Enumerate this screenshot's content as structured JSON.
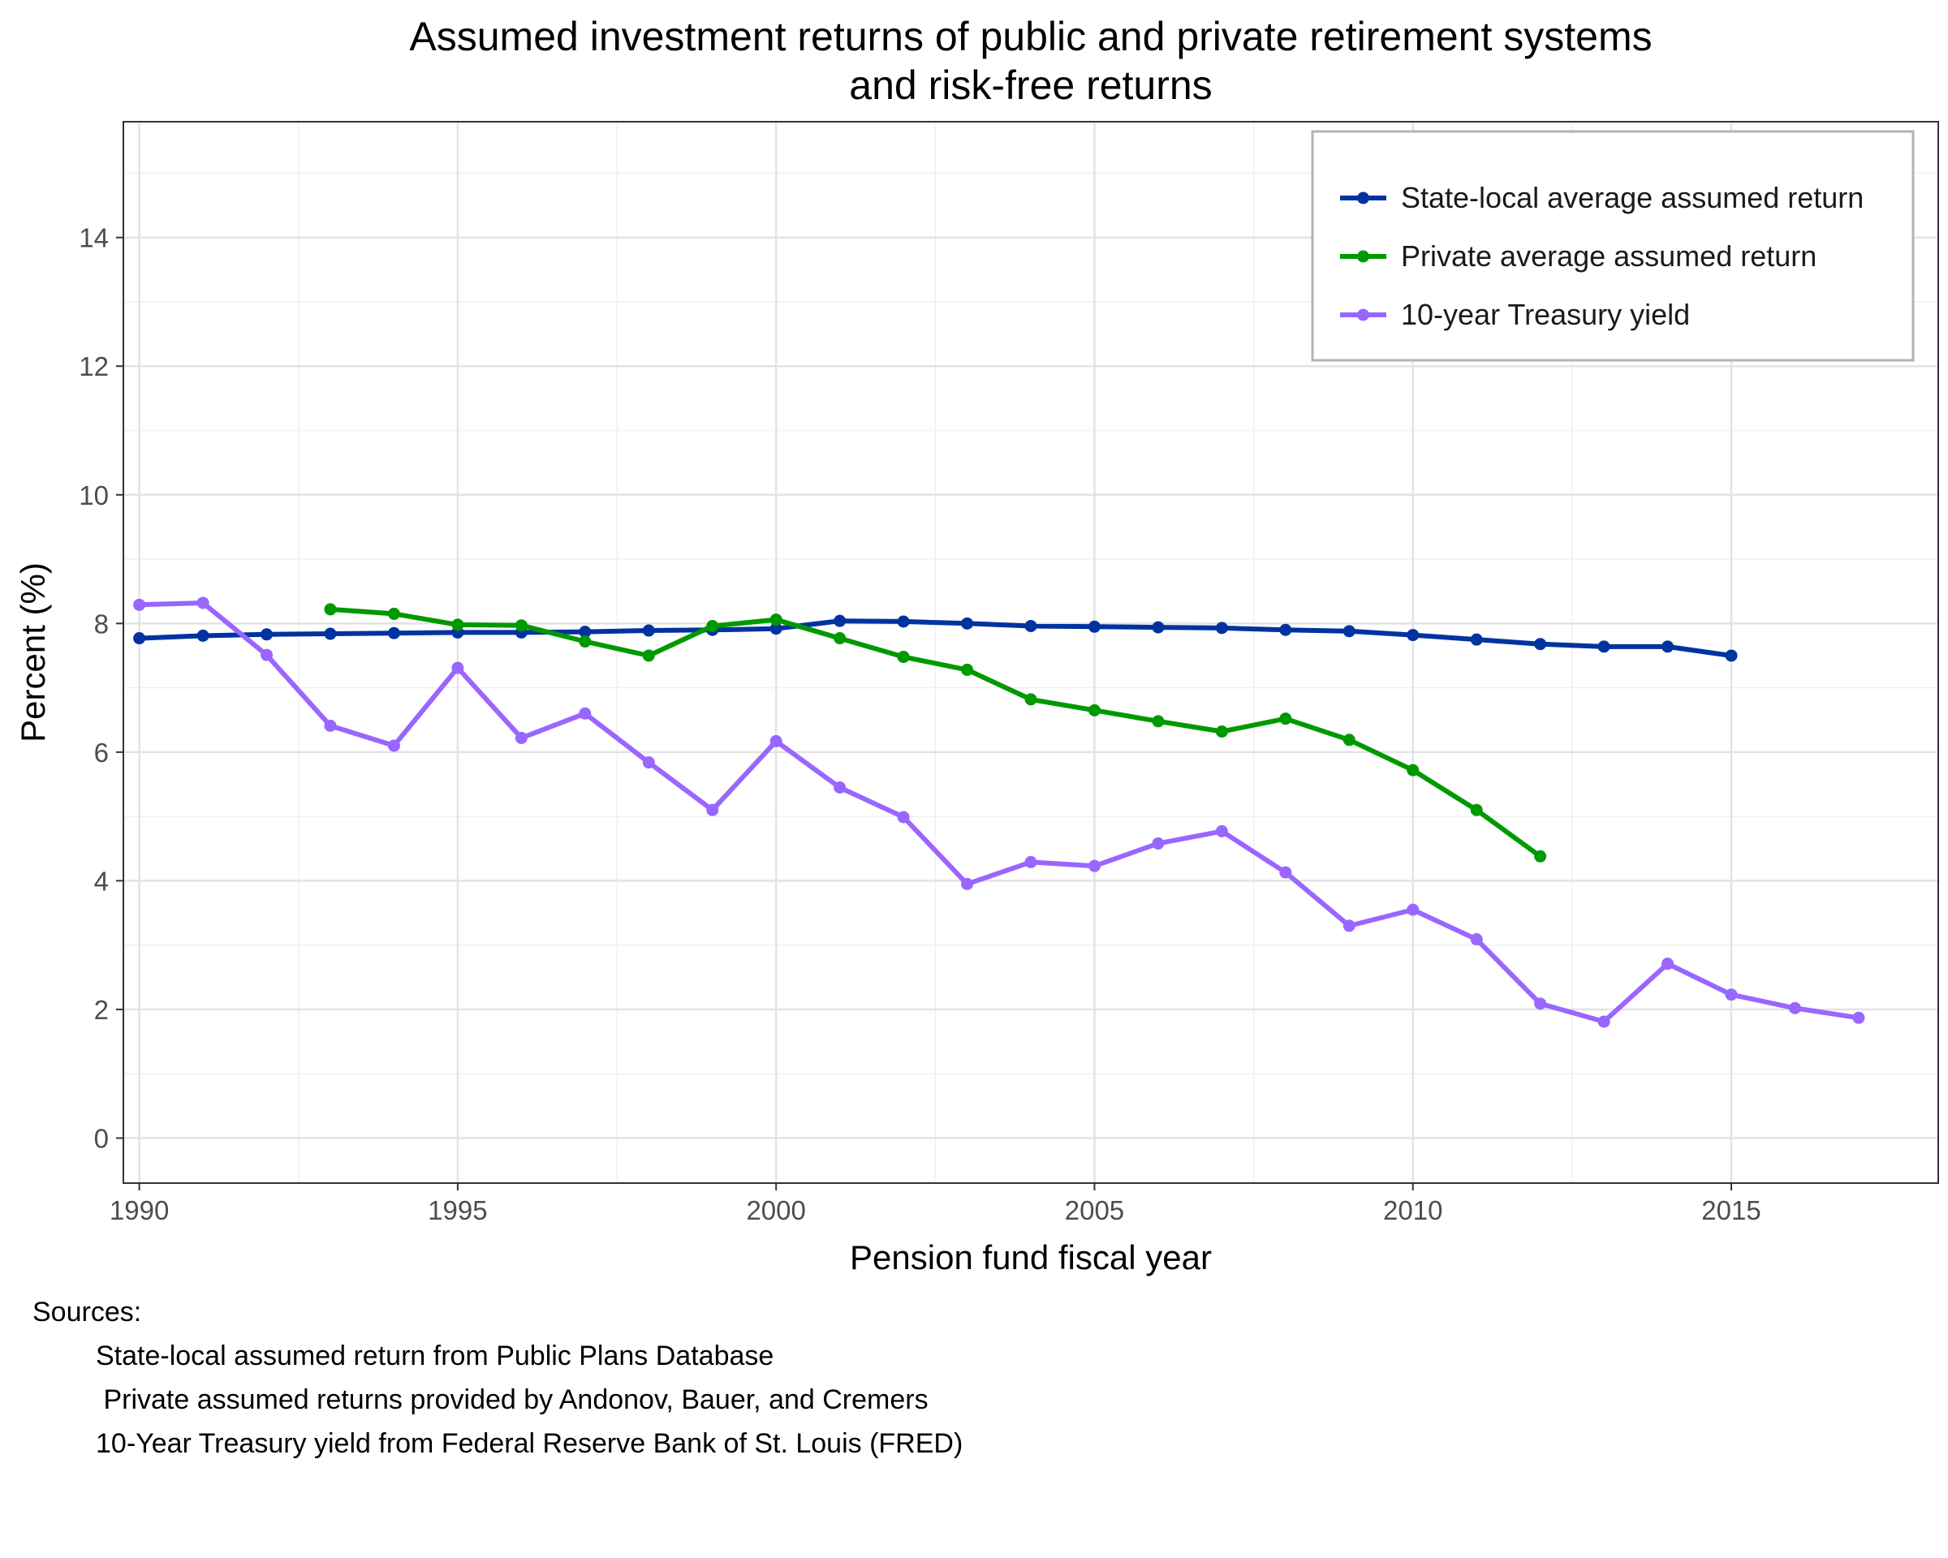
{
  "chart_data": {
    "type": "line",
    "title": [
      "Assumed investment returns of public and private retirement systems",
      "and risk-free returns"
    ],
    "xlabel": "Pension fund fiscal year",
    "ylabel": "Percent (%)",
    "xlim": [
      1989.75,
      2018.25
    ],
    "ylim": [
      -0.7,
      15.8
    ],
    "xticks": [
      1990,
      1995,
      2000,
      2005,
      2010,
      2015
    ],
    "yticks": [
      0,
      2,
      4,
      6,
      8,
      10,
      12,
      14
    ],
    "grid": true,
    "legend_position": "top-right",
    "series": [
      {
        "name": "State-local average assumed return",
        "color": "#0033a0",
        "x": [
          1990,
          1991,
          1992,
          1993,
          1994,
          1995,
          1996,
          1997,
          1998,
          1999,
          2000,
          2001,
          2002,
          2003,
          2004,
          2005,
          2006,
          2007,
          2008,
          2009,
          2010,
          2011,
          2012,
          2013,
          2014,
          2015
        ],
        "y": [
          7.77,
          7.81,
          7.83,
          7.84,
          7.85,
          7.86,
          7.86,
          7.87,
          7.89,
          7.9,
          7.92,
          8.04,
          8.03,
          8.0,
          7.96,
          7.95,
          7.94,
          7.93,
          7.9,
          7.88,
          7.82,
          7.75,
          7.68,
          7.64,
          7.64,
          7.5
        ]
      },
      {
        "name": "Private average assumed return",
        "color": "#009900",
        "x": [
          1993,
          1994,
          1995,
          1996,
          1997,
          1998,
          1999,
          2000,
          2001,
          2002,
          2003,
          2004,
          2005,
          2006,
          2007,
          2008,
          2009,
          2010,
          2011,
          2012
        ],
        "y": [
          8.22,
          8.15,
          7.98,
          7.97,
          7.72,
          7.5,
          7.96,
          8.06,
          7.77,
          7.48,
          7.28,
          6.82,
          6.65,
          6.48,
          6.32,
          6.52,
          6.19,
          5.72,
          5.1,
          4.38
        ]
      },
      {
        "name": "10-year Treasury yield",
        "color": "#9966ff",
        "x": [
          1990,
          1991,
          1992,
          1993,
          1994,
          1995,
          1996,
          1997,
          1998,
          1999,
          2000,
          2001,
          2002,
          2003,
          2004,
          2005,
          2006,
          2007,
          2008,
          2009,
          2010,
          2011,
          2012,
          2013,
          2014,
          2015,
          2016,
          2017
        ],
        "y": [
          8.29,
          8.32,
          7.51,
          6.41,
          6.1,
          7.31,
          6.22,
          6.6,
          5.84,
          5.1,
          6.17,
          5.45,
          4.99,
          3.95,
          4.29,
          4.23,
          4.58,
          4.77,
          4.13,
          3.3,
          3.55,
          3.09,
          2.09,
          1.81,
          2.71,
          2.23,
          2.02,
          1.87
        ]
      }
    ]
  },
  "sources": {
    "heading": "Sources:",
    "lines": [
      "State-local assumed return from Public Plans Database",
      " Private assumed returns provided by Andonov, Bauer, and Cremers",
      "10-Year Treasury yield from Federal Reserve Bank of St. Louis (FRED)"
    ]
  }
}
